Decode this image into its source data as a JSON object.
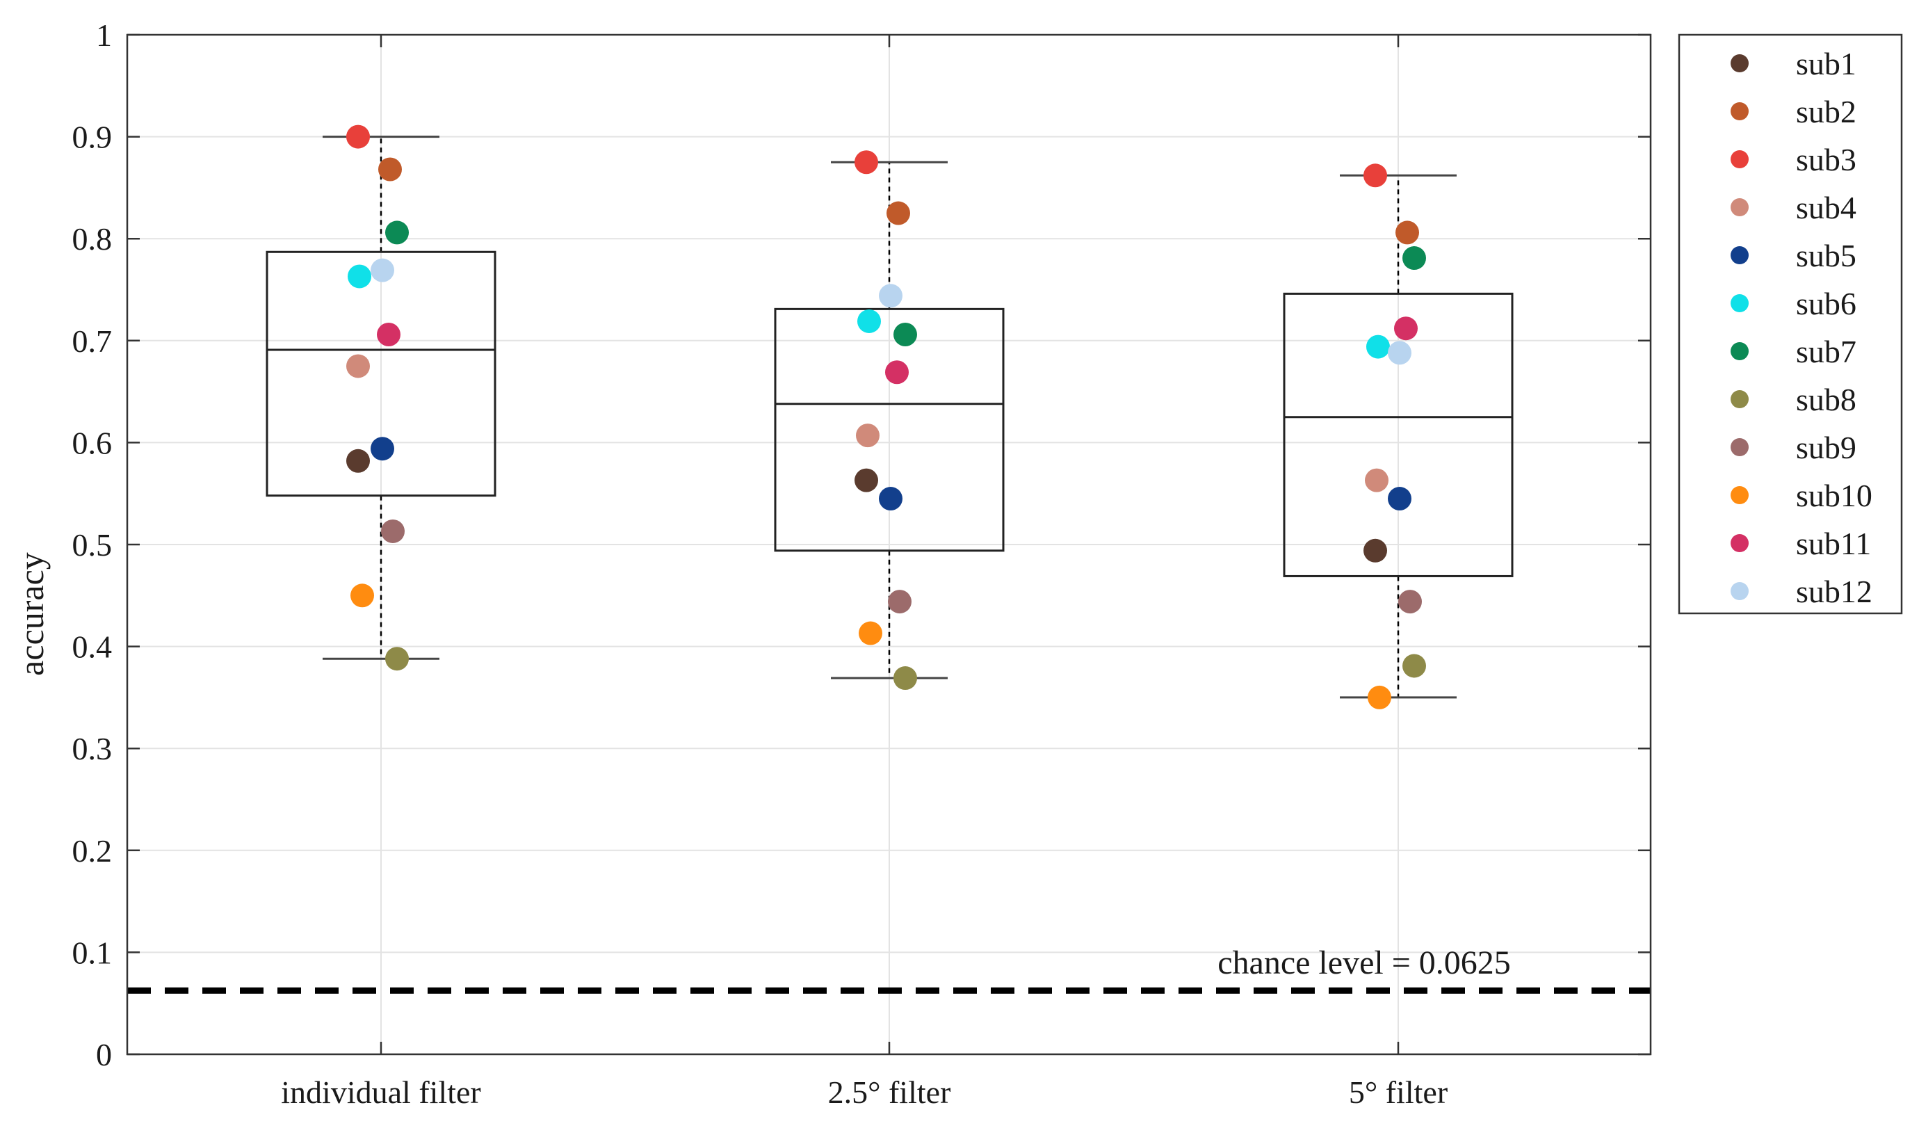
{
  "chart_data": {
    "type": "scatter",
    "subtype": "box-with-points",
    "title": "",
    "xlabel": "",
    "ylabel": "accuracy",
    "ylim": [
      0,
      1
    ],
    "yticks": [
      "0",
      "0.1",
      "0.2",
      "0.3",
      "0.4",
      "0.5",
      "0.6",
      "0.7",
      "0.8",
      "0.9",
      "1"
    ],
    "categories": [
      "individual filter",
      "2.5° filter",
      "5° filter"
    ],
    "grid": true,
    "legend_position": "outside-right",
    "series": [
      {
        "name": "sub1",
        "color": "#5a3b2e",
        "values": [
          0.582,
          0.563,
          0.494
        ]
      },
      {
        "name": "sub2",
        "color": "#c05a2a",
        "values": [
          0.868,
          0.825,
          0.806
        ]
      },
      {
        "name": "sub3",
        "color": "#e8403a",
        "values": [
          0.9,
          0.875,
          0.862
        ]
      },
      {
        "name": "sub4",
        "color": "#d08a7a",
        "values": [
          0.675,
          0.607,
          0.563
        ]
      },
      {
        "name": "sub5",
        "color": "#123f8c",
        "values": [
          0.594,
          0.545,
          0.545
        ]
      },
      {
        "name": "sub6",
        "color": "#10e0e8",
        "values": [
          0.763,
          0.719,
          0.694
        ]
      },
      {
        "name": "sub7",
        "color": "#0c8a55",
        "values": [
          0.806,
          0.706,
          0.781
        ]
      },
      {
        "name": "sub8",
        "color": "#8e8a48",
        "values": [
          0.388,
          0.369,
          0.381
        ]
      },
      {
        "name": "sub9",
        "color": "#9c6b6b",
        "values": [
          0.513,
          0.444,
          0.444
        ]
      },
      {
        "name": "sub10",
        "color": "#ff8c10",
        "values": [
          0.45,
          0.413,
          0.35
        ]
      },
      {
        "name": "sub11",
        "color": "#d43064",
        "values": [
          0.706,
          0.669,
          0.712
        ]
      },
      {
        "name": "sub12",
        "color": "#b8d4ef",
        "values": [
          0.769,
          0.744,
          0.688
        ]
      }
    ],
    "boxes": [
      {
        "category": "individual filter",
        "q1": 0.548,
        "median": 0.691,
        "q3": 0.787,
        "whisker_low": 0.388,
        "whisker_high": 0.9
      },
      {
        "category": "2.5° filter",
        "q1": 0.494,
        "median": 0.638,
        "q3": 0.731,
        "whisker_low": 0.369,
        "whisker_high": 0.875
      },
      {
        "category": "5° filter",
        "q1": 0.469,
        "median": 0.625,
        "q3": 0.746,
        "whisker_low": 0.35,
        "whisker_high": 0.862
      }
    ],
    "reference_line": {
      "value": 0.0625,
      "style": "dashed",
      "label": "chance level = 0.0625"
    }
  }
}
